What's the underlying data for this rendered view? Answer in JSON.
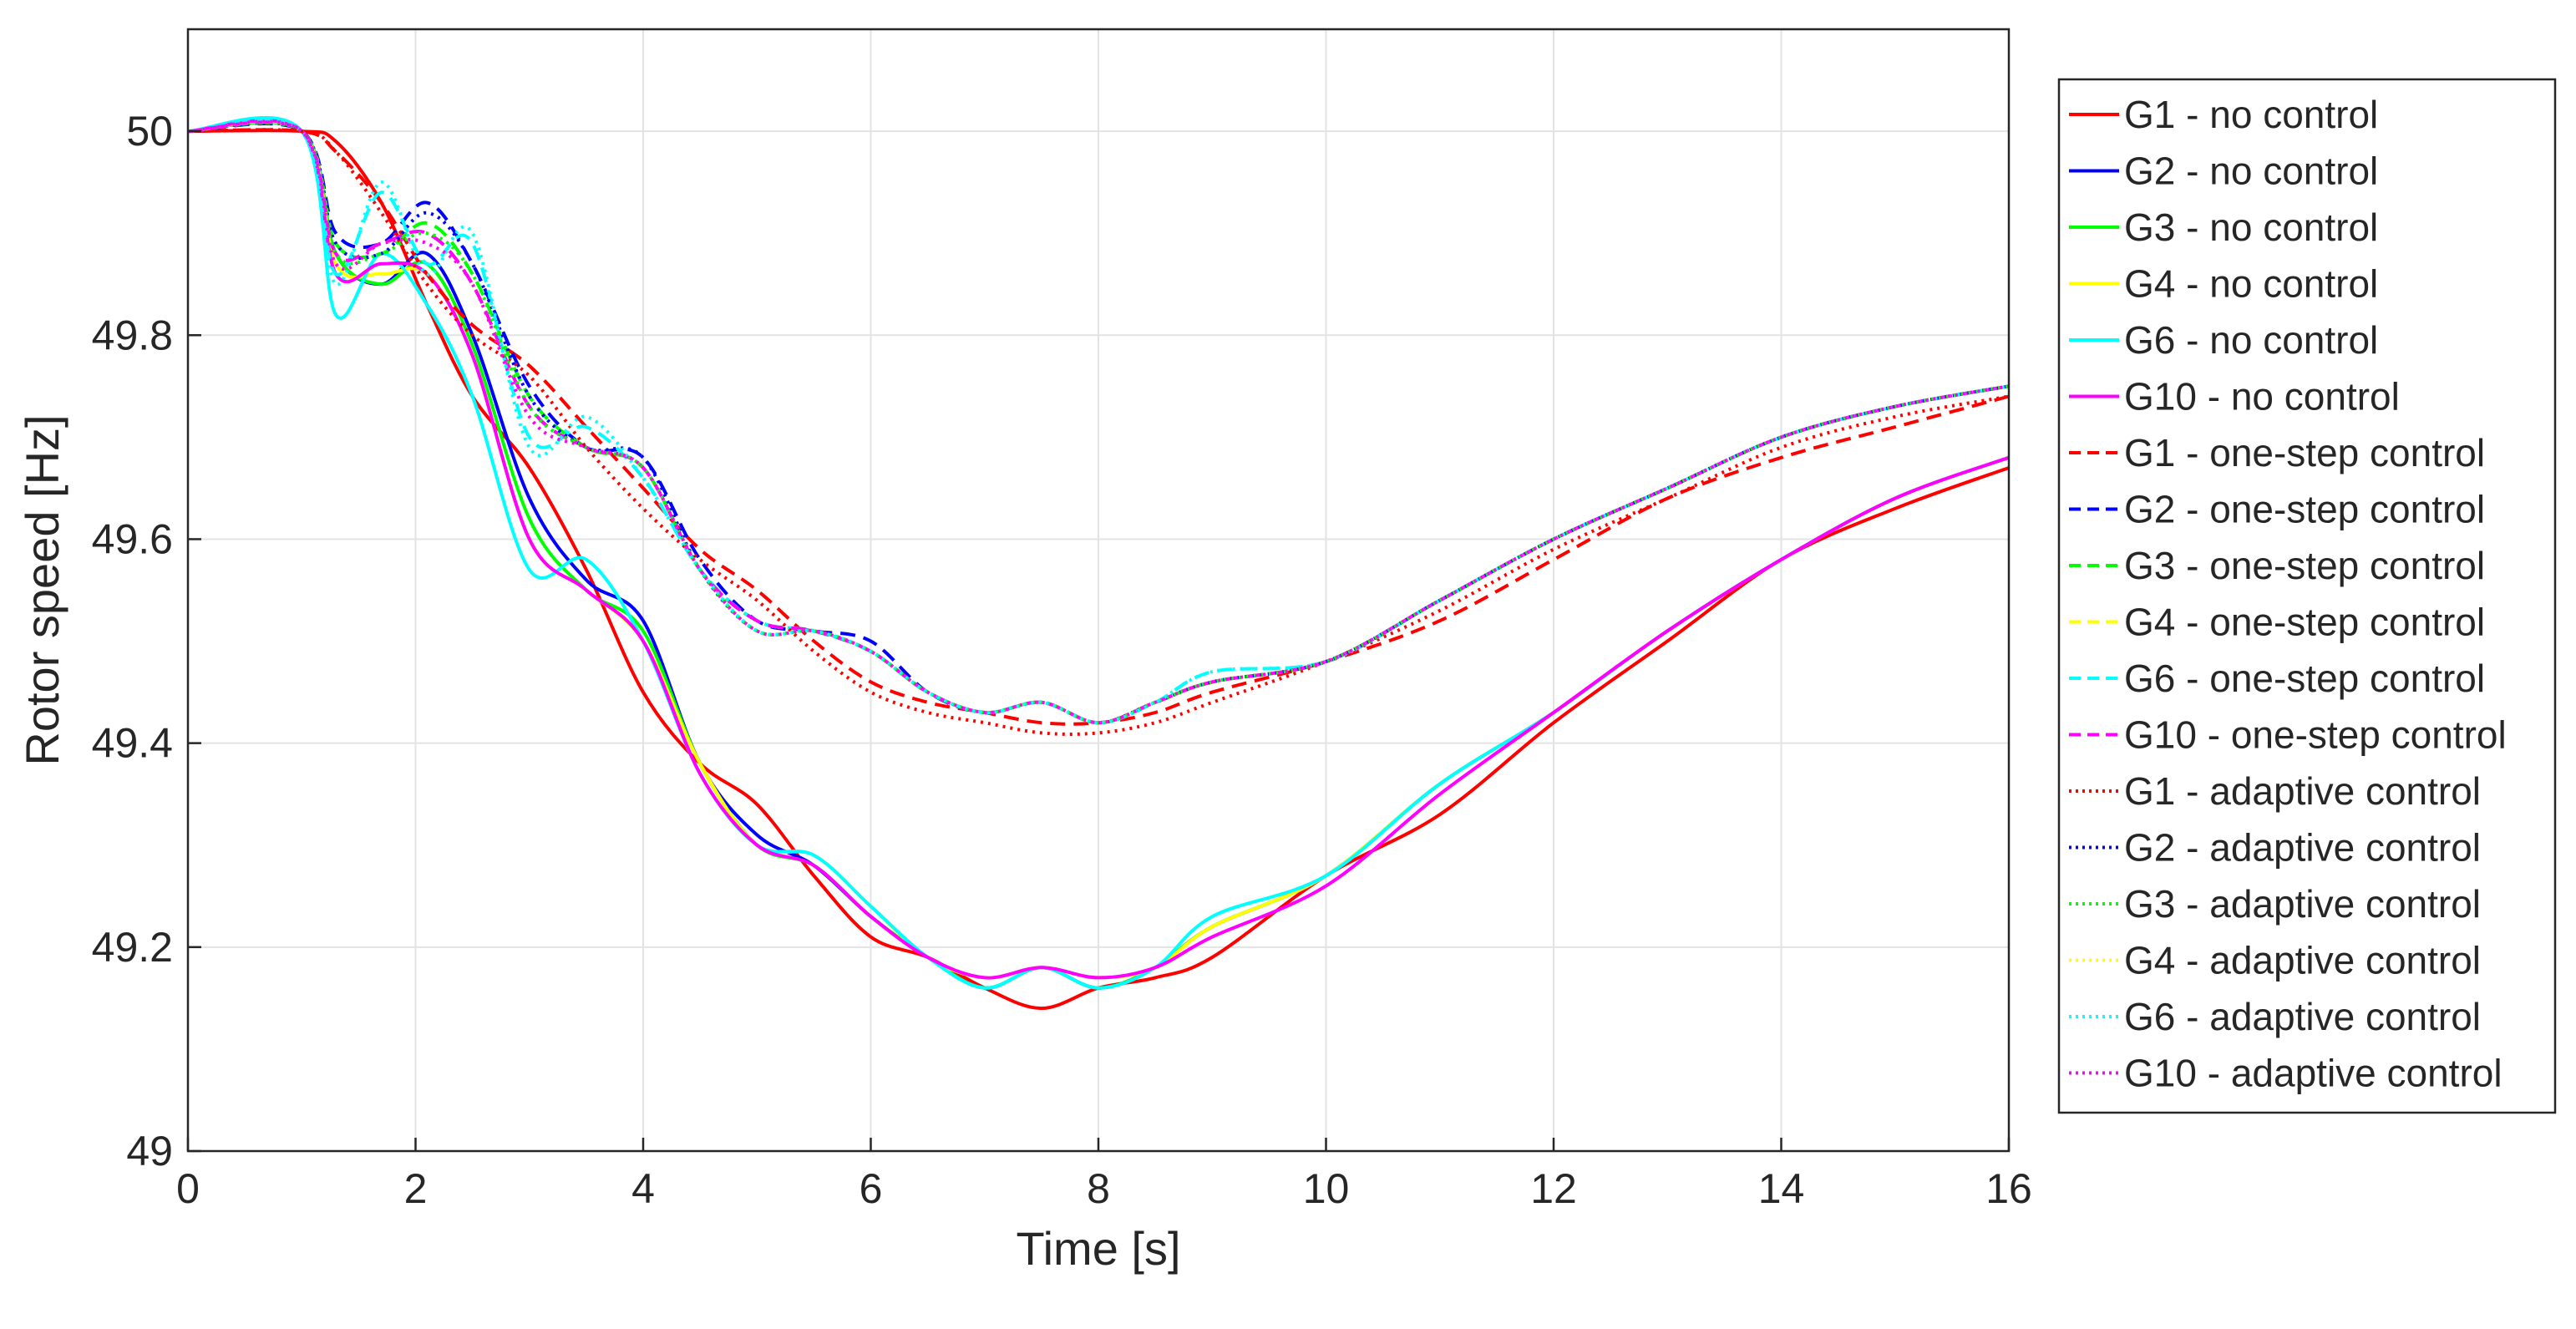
{
  "chart_data": {
    "type": "line",
    "title": "",
    "xlabel": "Time [s]",
    "ylabel": "Rotor speed [Hz]",
    "xlim": [
      0,
      16
    ],
    "ylim": [
      49,
      50.1
    ],
    "xticks": [
      0,
      2,
      4,
      6,
      8,
      10,
      12,
      14,
      16
    ],
    "xtick_labels": [
      "0",
      "2",
      "4",
      "6",
      "8",
      "10",
      "12",
      "14",
      "16"
    ],
    "yticks": [
      49,
      49.2,
      49.4,
      49.6,
      49.8,
      50
    ],
    "ytick_labels": [
      "49",
      "49.2",
      "49.4",
      "49.6",
      "49.8",
      "50"
    ],
    "grid": true,
    "legend_position": "outside-right",
    "x": [
      0,
      1,
      1.3,
      1.7,
      2.1,
      2.5,
      3,
      3.5,
      4,
      4.5,
      5,
      5.5,
      6,
      6.5,
      7,
      7.5,
      8,
      8.5,
      9,
      10,
      11,
      12,
      13,
      14,
      15,
      16
    ],
    "series": [
      {
        "name": "G1 - no control",
        "color": "#ff0000",
        "dash": "solid",
        "values": [
          50,
          50,
          49.99,
          49.93,
          49.83,
          49.74,
          49.67,
          49.57,
          49.45,
          49.38,
          49.34,
          49.27,
          49.21,
          49.19,
          49.16,
          49.14,
          49.16,
          49.17,
          49.19,
          49.27,
          49.33,
          49.42,
          49.5,
          49.58,
          49.63,
          49.67
        ]
      },
      {
        "name": "G2 - no control",
        "color": "#0000ff",
        "dash": "solid",
        "values": [
          50,
          50,
          49.88,
          49.85,
          49.88,
          49.8,
          49.64,
          49.56,
          49.52,
          49.38,
          49.31,
          49.28,
          49.23,
          49.19,
          49.16,
          49.18,
          49.16,
          49.18,
          49.22,
          49.27,
          49.36,
          49.43,
          49.51,
          49.58,
          49.64,
          49.68
        ]
      },
      {
        "name": "G3 - no control",
        "color": "#00ff00",
        "dash": "solid",
        "values": [
          50,
          50,
          49.88,
          49.85,
          49.87,
          49.79,
          49.62,
          49.55,
          49.51,
          49.38,
          49.3,
          49.28,
          49.23,
          49.19,
          49.16,
          49.18,
          49.16,
          49.18,
          49.22,
          49.27,
          49.36,
          49.43,
          49.51,
          49.58,
          49.64,
          49.68
        ]
      },
      {
        "name": "G4 - no control",
        "color": "#ffff00",
        "dash": "solid",
        "values": [
          50,
          50,
          49.87,
          49.86,
          49.86,
          49.78,
          49.6,
          49.55,
          49.5,
          49.38,
          49.3,
          49.29,
          49.24,
          49.19,
          49.17,
          49.18,
          49.17,
          49.18,
          49.22,
          49.27,
          49.36,
          49.43,
          49.51,
          49.58,
          49.64,
          49.68
        ]
      },
      {
        "name": "G6 - no control",
        "color": "#00ffff",
        "dash": "solid",
        "values": [
          50,
          50,
          49.82,
          49.88,
          49.83,
          49.74,
          49.57,
          49.58,
          49.5,
          49.37,
          49.3,
          49.29,
          49.24,
          49.19,
          49.16,
          49.18,
          49.16,
          49.18,
          49.23,
          49.27,
          49.36,
          49.43,
          49.51,
          49.58,
          49.64,
          49.68
        ]
      },
      {
        "name": "G10 - no control",
        "color": "#ff00ff",
        "dash": "solid",
        "values": [
          50,
          50,
          49.86,
          49.87,
          49.86,
          49.78,
          49.6,
          49.55,
          49.5,
          49.37,
          49.3,
          49.28,
          49.23,
          49.19,
          49.17,
          49.18,
          49.17,
          49.18,
          49.21,
          49.26,
          49.35,
          49.43,
          49.51,
          49.58,
          49.64,
          49.68
        ]
      },
      {
        "name": "G1 - one-step control",
        "color": "#ff0000",
        "dash": "dashed",
        "values": [
          50,
          50,
          49.98,
          49.93,
          49.86,
          49.81,
          49.77,
          49.71,
          49.65,
          49.59,
          49.55,
          49.5,
          49.46,
          49.44,
          49.43,
          49.42,
          49.42,
          49.43,
          49.45,
          49.48,
          49.52,
          49.58,
          49.64,
          49.68,
          49.71,
          49.74
        ]
      },
      {
        "name": "G2 - one-step control",
        "color": "#0000ff",
        "dash": "dashed",
        "values": [
          50,
          50,
          49.9,
          49.89,
          49.93,
          49.87,
          49.75,
          49.69,
          49.68,
          49.58,
          49.52,
          49.51,
          49.5,
          49.45,
          49.43,
          49.44,
          49.42,
          49.44,
          49.46,
          49.48,
          49.54,
          49.6,
          49.65,
          49.7,
          49.73,
          49.75
        ]
      },
      {
        "name": "G3 - one-step control",
        "color": "#00ff00",
        "dash": "dashed",
        "values": [
          50,
          50,
          49.89,
          49.88,
          49.91,
          49.86,
          49.74,
          49.69,
          49.67,
          49.57,
          49.52,
          49.51,
          49.49,
          49.45,
          49.43,
          49.44,
          49.42,
          49.44,
          49.46,
          49.48,
          49.54,
          49.6,
          49.65,
          49.7,
          49.73,
          49.75
        ]
      },
      {
        "name": "G4 - one-step control",
        "color": "#ffff00",
        "dash": "dashed",
        "values": [
          50,
          50,
          49.88,
          49.89,
          49.9,
          49.85,
          49.73,
          49.69,
          49.67,
          49.57,
          49.52,
          49.51,
          49.49,
          49.45,
          49.43,
          49.44,
          49.42,
          49.44,
          49.46,
          49.48,
          49.54,
          49.6,
          49.65,
          49.7,
          49.73,
          49.75
        ]
      },
      {
        "name": "G6 - one-step control",
        "color": "#00ffff",
        "dash": "dashed",
        "values": [
          50,
          50,
          49.86,
          49.94,
          49.87,
          49.89,
          49.7,
          49.71,
          49.66,
          49.57,
          49.52,
          49.51,
          49.49,
          49.45,
          49.43,
          49.44,
          49.42,
          49.44,
          49.47,
          49.48,
          49.54,
          49.6,
          49.65,
          49.7,
          49.73,
          49.75
        ]
      },
      {
        "name": "G10 - one-step control",
        "color": "#ff00ff",
        "dash": "dashed",
        "values": [
          50,
          50,
          49.88,
          49.89,
          49.9,
          49.85,
          49.73,
          49.69,
          49.67,
          49.57,
          49.52,
          49.51,
          49.49,
          49.45,
          49.43,
          49.44,
          49.42,
          49.44,
          49.46,
          49.48,
          49.54,
          49.6,
          49.65,
          49.7,
          49.73,
          49.75
        ]
      },
      {
        "name": "G1 - adaptive control",
        "color": "#ff0000",
        "dash": "dotted",
        "values": [
          50,
          50,
          49.98,
          49.92,
          49.85,
          49.8,
          49.76,
          49.69,
          49.63,
          49.58,
          49.54,
          49.49,
          49.45,
          49.43,
          49.42,
          49.41,
          49.41,
          49.42,
          49.44,
          49.48,
          49.53,
          49.59,
          49.64,
          49.69,
          49.72,
          49.74
        ]
      },
      {
        "name": "G2 - adaptive control",
        "color": "#0000ff",
        "dash": "dotted",
        "values": [
          50,
          50,
          49.89,
          49.88,
          49.92,
          49.87,
          49.74,
          49.69,
          49.68,
          49.57,
          49.51,
          49.51,
          49.49,
          49.45,
          49.43,
          49.44,
          49.42,
          49.44,
          49.46,
          49.48,
          49.54,
          49.6,
          49.65,
          49.7,
          49.73,
          49.75
        ]
      },
      {
        "name": "G3 - adaptive control",
        "color": "#00ff00",
        "dash": "dotted",
        "values": [
          50,
          50,
          49.88,
          49.88,
          49.9,
          49.86,
          49.73,
          49.69,
          49.67,
          49.57,
          49.51,
          49.51,
          49.49,
          49.45,
          49.43,
          49.44,
          49.42,
          49.44,
          49.46,
          49.48,
          49.54,
          49.6,
          49.65,
          49.7,
          49.73,
          49.75
        ]
      },
      {
        "name": "G4 - adaptive control",
        "color": "#ffff00",
        "dash": "dotted",
        "values": [
          50,
          50,
          49.87,
          49.89,
          49.89,
          49.85,
          49.72,
          49.69,
          49.67,
          49.57,
          49.51,
          49.51,
          49.49,
          49.45,
          49.43,
          49.44,
          49.42,
          49.44,
          49.46,
          49.48,
          49.54,
          49.6,
          49.65,
          49.7,
          49.73,
          49.75
        ]
      },
      {
        "name": "G6 - adaptive control",
        "color": "#00ffff",
        "dash": "dotted",
        "values": [
          50,
          50,
          49.85,
          49.95,
          49.86,
          49.9,
          49.69,
          49.72,
          49.66,
          49.57,
          49.51,
          49.51,
          49.49,
          49.45,
          49.43,
          49.44,
          49.42,
          49.44,
          49.47,
          49.48,
          49.54,
          49.6,
          49.65,
          49.7,
          49.73,
          49.75
        ]
      },
      {
        "name": "G10 - adaptive control",
        "color": "#ff00ff",
        "dash": "dotted",
        "values": [
          50,
          50,
          49.87,
          49.89,
          49.89,
          49.85,
          49.72,
          49.69,
          49.67,
          49.57,
          49.51,
          49.51,
          49.49,
          49.45,
          49.43,
          49.44,
          49.42,
          49.44,
          49.46,
          49.48,
          49.54,
          49.6,
          49.65,
          49.7,
          49.73,
          49.75
        ]
      }
    ]
  }
}
